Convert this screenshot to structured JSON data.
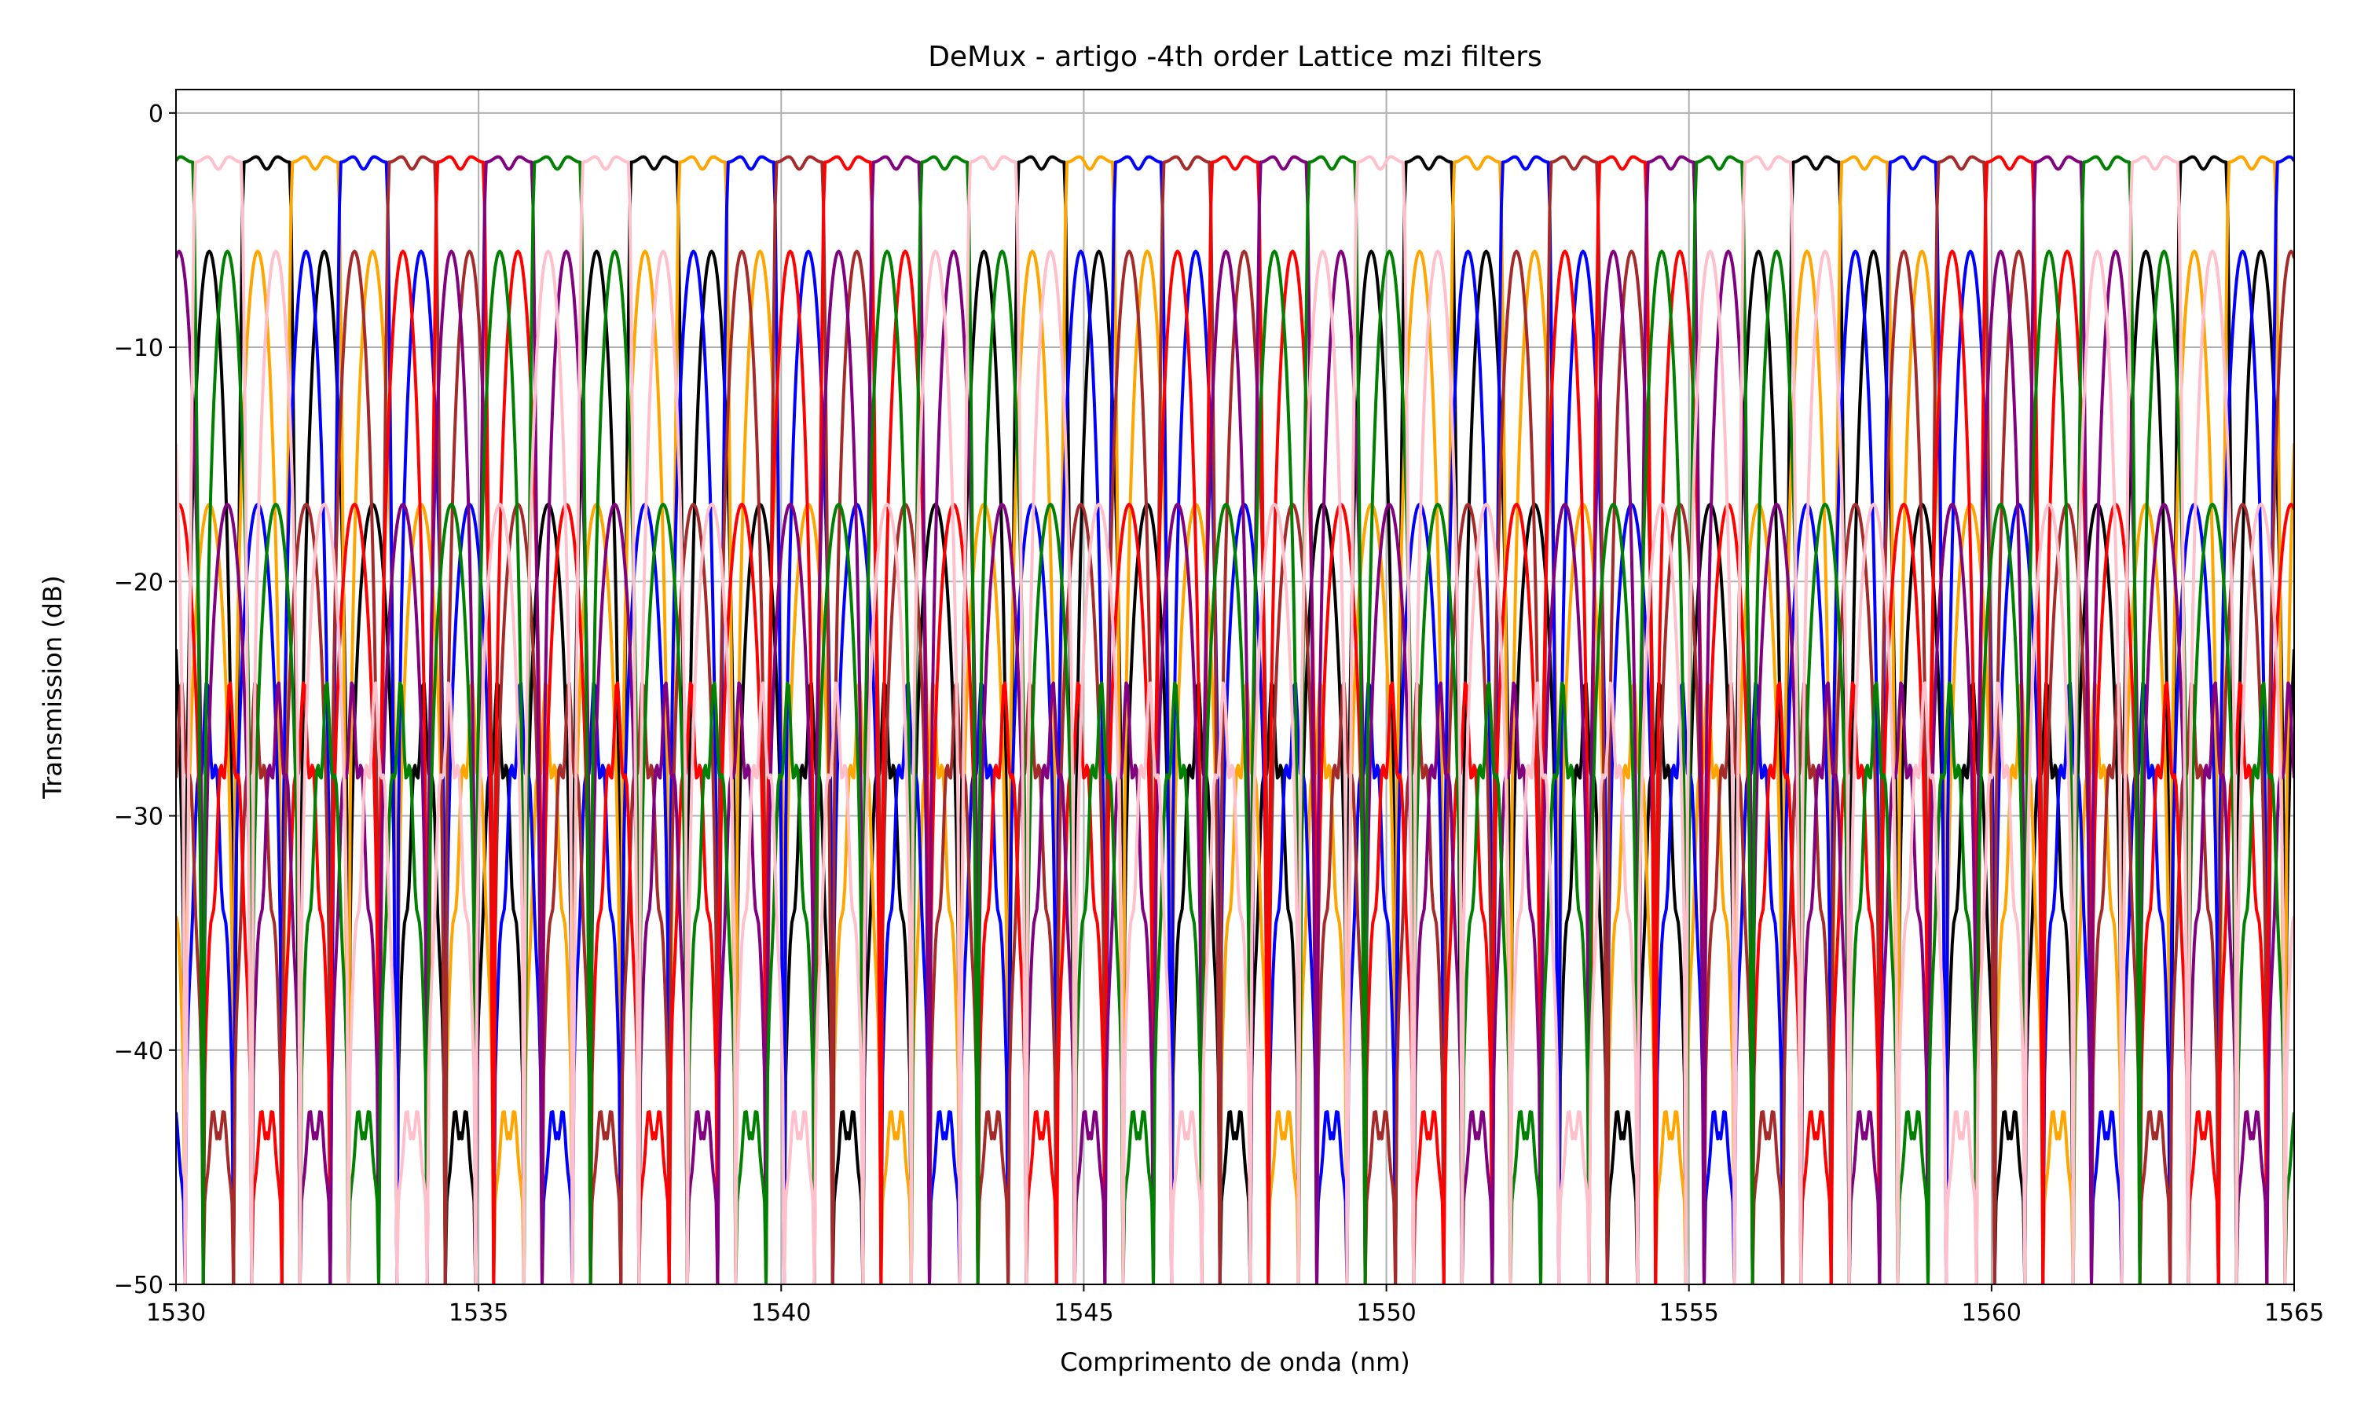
{
  "chart_data": {
    "type": "line",
    "title": "DeMux - artigo -4th order Lattice mzi filters",
    "xlabel": "Comprimento de onda (nm)",
    "ylabel": "Transmission (dB)",
    "xlim": [
      1530,
      1565
    ],
    "ylim": [
      -50,
      1
    ],
    "grid": true,
    "legend": "none",
    "x_ticks": [
      1530,
      1535,
      1540,
      1545,
      1550,
      1555,
      1560,
      1565
    ],
    "y_ticks": [
      0,
      -10,
      -20,
      -30,
      -40,
      -50
    ],
    "x_tick_labels": [
      "1530",
      "1535",
      "1540",
      "1545",
      "1550",
      "1555",
      "1560",
      "1565"
    ],
    "y_tick_labels": [
      "0",
      "−10",
      "−20",
      "−30",
      "−40",
      "−50"
    ],
    "channel_spacing_nm": 0.8,
    "channel_period_nm": 6.4,
    "passband_level_db": -1.6,
    "first_sidelobe_level_db": -5.9,
    "second_sidelobe_level_db": -16.7,
    "floor_db": -50,
    "series": [
      {
        "color": "#000000",
        "passband_centers_nm": [
          1531.5,
          1537.9,
          1544.3,
          1550.7,
          1557.1,
          1563.5
        ]
      },
      {
        "color": "#ffa500",
        "passband_centers_nm": [
          1532.3,
          1538.7,
          1545.1,
          1551.5,
          1557.9,
          1564.3
        ]
      },
      {
        "color": "#0000ff",
        "passband_centers_nm": [
          1533.1,
          1539.5,
          1545.9,
          1552.3,
          1558.7
        ]
      },
      {
        "color": "#a52a2a",
        "passband_centers_nm": [
          1533.9,
          1540.3,
          1546.7,
          1553.1,
          1559.5
        ]
      },
      {
        "color": "#ff0000",
        "passband_centers_nm": [
          1534.7,
          1541.1,
          1547.5,
          1553.9,
          1560.3
        ]
      },
      {
        "color": "#800080",
        "passband_centers_nm": [
          1535.5,
          1541.9,
          1548.3,
          1554.7,
          1561.1
        ]
      },
      {
        "color": "#008000",
        "passband_centers_nm": [
          1536.3,
          1542.7,
          1549.1,
          1555.5,
          1561.9
        ]
      },
      {
        "color": "#ffc0cb",
        "passband_centers_nm": [
          1530.7,
          1537.1,
          1543.5,
          1549.9,
          1556.3,
          1562.7
        ]
      }
    ]
  }
}
